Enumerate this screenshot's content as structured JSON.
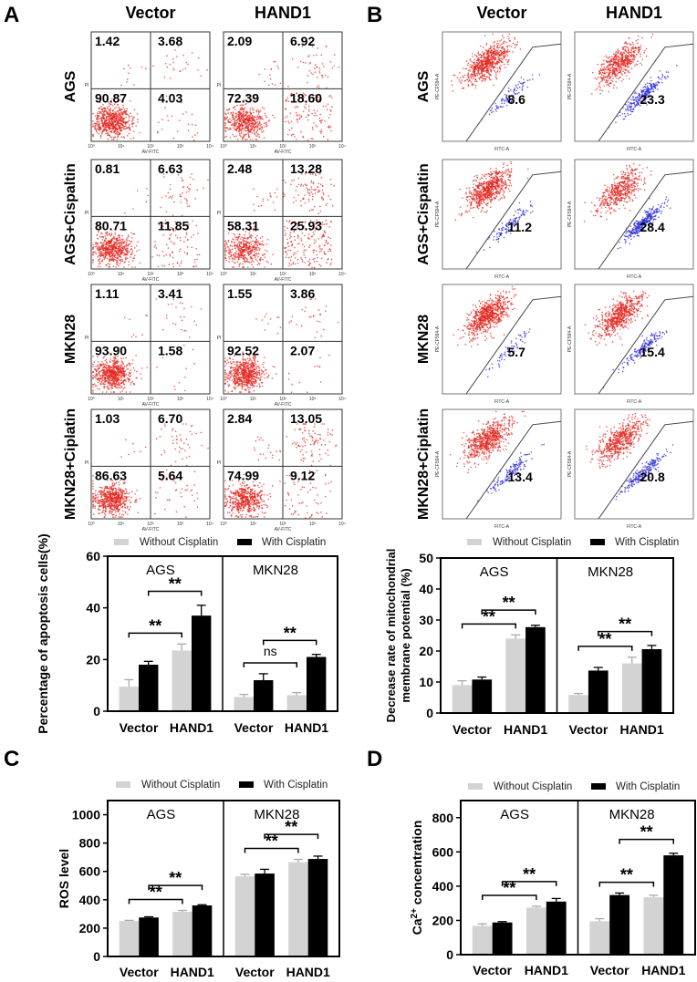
{
  "panel_labels": {
    "a": "A",
    "b": "B",
    "c": "C",
    "d": "D"
  },
  "flow_a": {
    "columns": [
      "Vector",
      "HAND1"
    ],
    "x_axis": "AV-FITC",
    "y_axis": "PI",
    "ticks": [
      "10⁰",
      "10¹",
      "10²",
      "10³",
      "10⁴"
    ],
    "dot_color": "#e3261f",
    "rows": [
      {
        "label": "AGS",
        "plots": [
          {
            "ul": "1.42",
            "ur": "3.68",
            "ll": "90.87",
            "lr": "4.03"
          },
          {
            "ul": "2.09",
            "ur": "6.92",
            "ll": "72.39",
            "lr": "18.60"
          }
        ]
      },
      {
        "label": "AGS+Cispaltin",
        "plots": [
          {
            "ul": "0.81",
            "ur": "6.63",
            "ll": "80.71",
            "lr": "11.85"
          },
          {
            "ul": "2.48",
            "ur": "13.28",
            "ll": "58.31",
            "lr": "25.93"
          }
        ]
      },
      {
        "label": "MKN28",
        "plots": [
          {
            "ul": "1.11",
            "ur": "3.41",
            "ll": "93.90",
            "lr": "1.58"
          },
          {
            "ul": "1.55",
            "ur": "3.86",
            "ll": "92.52",
            "lr": "2.07"
          }
        ]
      },
      {
        "label": "MKN28+Ciplatin",
        "plots": [
          {
            "ul": "1.03",
            "ur": "6.70",
            "ll": "86.63",
            "lr": "5.64"
          },
          {
            "ul": "2.84",
            "ur": "13.05",
            "ll": "74.99",
            "lr": "9.12"
          }
        ]
      }
    ]
  },
  "flow_b": {
    "columns": [
      "Vector",
      "HAND1"
    ],
    "x_axis": "FITC-A",
    "y_axis": "PE-CF594-A",
    "colors": {
      "aggregate": "#e3261f",
      "monomer": "#2b2bd6"
    },
    "rows": [
      {
        "label": "AGS",
        "values": [
          "8.6",
          "23.3"
        ]
      },
      {
        "label": "AGS+Cispaltin",
        "values": [
          "11.2",
          "28.4"
        ]
      },
      {
        "label": "MKN28",
        "values": [
          "5.7",
          "15.4"
        ]
      },
      {
        "label": "MKN28+Ciplatin",
        "values": [
          "13.4",
          "20.8"
        ]
      }
    ]
  },
  "chart_data": [
    {
      "panel": "A",
      "type": "bar",
      "ylabel": [
        "Percentage of apoptosis cells(%)"
      ],
      "ylim": [
        0,
        60
      ],
      "yticks": [
        0,
        20,
        40,
        60
      ],
      "legend": [
        "Without Cisplatin",
        "With Cisplatin"
      ],
      "colors": [
        "#d3d3d3",
        "#000000"
      ],
      "facets": [
        {
          "title": "AGS",
          "categories": [
            "Vector",
            "HAND1"
          ],
          "series": [
            {
              "name": "Without Cisplatin",
              "values": [
                9.5,
                23.5
              ],
              "errors": [
                2.7,
                2.5
              ]
            },
            {
              "name": "With Cisplatin",
              "values": [
                18,
                37
              ],
              "errors": [
                1.3,
                4
              ]
            }
          ],
          "significance": [
            {
              "series": "Without Cisplatin",
              "label": "**"
            },
            {
              "series": "With Cisplatin",
              "label": "**"
            }
          ]
        },
        {
          "title": "MKN28",
          "categories": [
            "Vector",
            "HAND1"
          ],
          "series": [
            {
              "name": "Without Cisplatin",
              "values": [
                5.5,
                6.2
              ],
              "errors": [
                1,
                1
              ]
            },
            {
              "name": "With Cisplatin",
              "values": [
                12,
                21
              ],
              "errors": [
                2.5,
                1
              ]
            }
          ],
          "significance": [
            {
              "series": "Without Cisplatin",
              "label": "ns"
            },
            {
              "series": "With Cisplatin",
              "label": "**"
            }
          ]
        }
      ]
    },
    {
      "panel": "B",
      "type": "bar",
      "ylabel": [
        "Decrease  rate  of  mitochondrial",
        "membrane  potential  (%)"
      ],
      "ylim": [
        0,
        50
      ],
      "yticks": [
        0,
        10,
        20,
        30,
        40,
        50
      ],
      "legend": [
        "Without Cisplatin",
        "With Cisplatin"
      ],
      "colors": [
        "#d3d3d3",
        "#000000"
      ],
      "facets": [
        {
          "title": "AGS",
          "categories": [
            "Vector",
            "HAND1"
          ],
          "series": [
            {
              "name": "Without Cisplatin",
              "values": [
                9,
                24
              ],
              "errors": [
                1.4,
                1.2
              ]
            },
            {
              "name": "With Cisplatin",
              "values": [
                10.8,
                27.7
              ],
              "errors": [
                0.8,
                0.6
              ]
            }
          ],
          "significance": [
            {
              "series": "Without Cisplatin",
              "label": "**"
            },
            {
              "series": "With Cisplatin",
              "label": "**"
            }
          ]
        },
        {
          "title": "MKN28",
          "categories": [
            "Vector",
            "HAND1"
          ],
          "series": [
            {
              "name": "Without Cisplatin",
              "values": [
                5.8,
                16
              ],
              "errors": [
                0.5,
                2
              ]
            },
            {
              "name": "With Cisplatin",
              "values": [
                13.7,
                20.6
              ],
              "errors": [
                1,
                1.2
              ]
            }
          ],
          "significance": [
            {
              "series": "Without Cisplatin",
              "label": "**"
            },
            {
              "series": "With Cisplatin",
              "label": "**"
            }
          ]
        }
      ]
    },
    {
      "panel": "C",
      "type": "bar",
      "ylabel": [
        "ROS level"
      ],
      "ylim": [
        0,
        1100
      ],
      "yticks": [
        0,
        200,
        400,
        600,
        800,
        1000
      ],
      "legend": [
        "Without Cisplatin",
        "With Cisplatin"
      ],
      "colors": [
        "#d3d3d3",
        "#000000"
      ],
      "facets": [
        {
          "title": "AGS",
          "categories": [
            "Vector",
            "HAND1"
          ],
          "series": [
            {
              "name": "Without Cisplatin",
              "values": [
                250,
                315
              ],
              "errors": [
                5,
                10
              ]
            },
            {
              "name": "With Cisplatin",
              "values": [
                275,
                360
              ],
              "errors": [
                5,
                5
              ]
            }
          ],
          "significance": [
            {
              "series": "Without Cisplatin",
              "label": "**"
            },
            {
              "series": "With Cisplatin",
              "label": "**"
            }
          ]
        },
        {
          "title": "MKN28",
          "categories": [
            "Vector",
            "HAND1"
          ],
          "series": [
            {
              "name": "Without Cisplatin",
              "values": [
                565,
                665
              ],
              "errors": [
                15,
                20
              ]
            },
            {
              "name": "With Cisplatin",
              "values": [
                585,
                688
              ],
              "errors": [
                30,
                20
              ]
            }
          ],
          "significance": [
            {
              "series": "Without Cisplatin",
              "label": "**"
            },
            {
              "series": "With Cisplatin",
              "label": "**"
            }
          ]
        }
      ]
    },
    {
      "panel": "D",
      "type": "bar",
      "ylabel": [
        "Ca",
        "2+",
        " concentration"
      ],
      "ylim": [
        0,
        900
      ],
      "yticks": [
        0,
        200,
        400,
        600,
        800
      ],
      "legend": [
        "Without Cisplatin",
        "With Cisplatin"
      ],
      "colors": [
        "#d3d3d3",
        "#000000"
      ],
      "facets": [
        {
          "title": "AGS",
          "categories": [
            "Vector",
            "HAND1"
          ],
          "series": [
            {
              "name": "Without Cisplatin",
              "values": [
                168,
                275
              ],
              "errors": [
                12,
                8
              ]
            },
            {
              "name": "With Cisplatin",
              "values": [
                188,
                310
              ],
              "errors": [
                5,
                18
              ]
            }
          ],
          "significance": [
            {
              "series": "Without Cisplatin",
              "label": "**"
            },
            {
              "series": "With Cisplatin",
              "label": "**"
            }
          ]
        },
        {
          "title": "MKN28",
          "categories": [
            "Vector",
            "HAND1"
          ],
          "series": [
            {
              "name": "Without Cisplatin",
              "values": [
                195,
                335
              ],
              "errors": [
                15,
                12
              ]
            },
            {
              "name": "With Cisplatin",
              "values": [
                348,
                580
              ],
              "errors": [
                12,
                12
              ]
            }
          ],
          "significance": [
            {
              "series": "Without Cisplatin",
              "label": "**"
            },
            {
              "series": "With Cisplatin",
              "label": "**"
            }
          ]
        }
      ]
    }
  ]
}
